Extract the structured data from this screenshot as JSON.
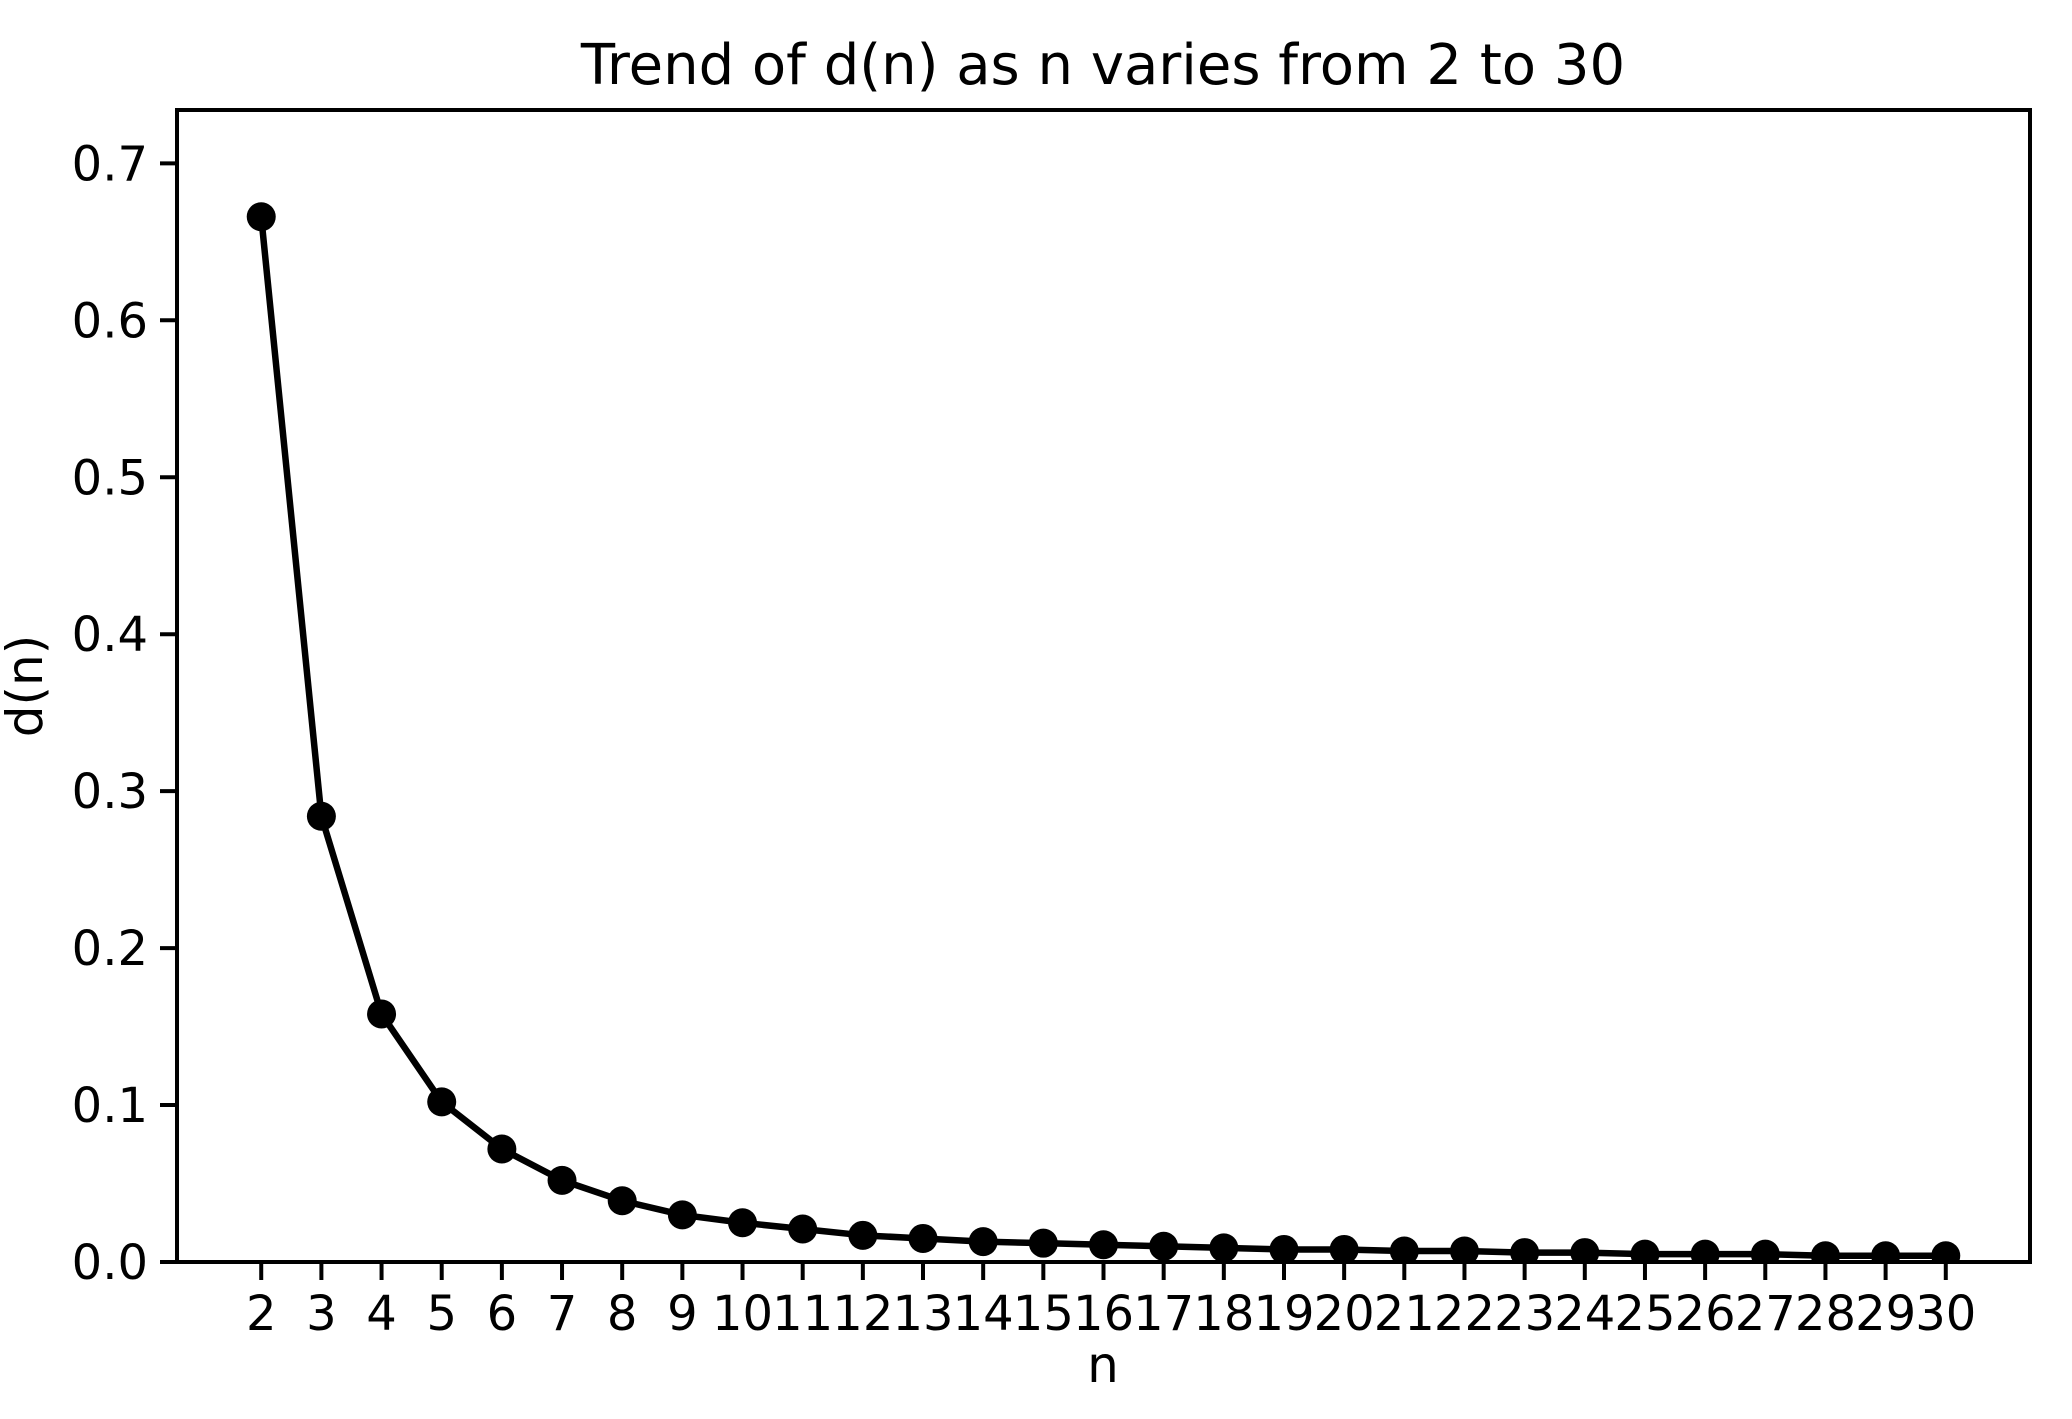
{
  "chart_data": {
    "type": "line",
    "title": "Trend of d(n) as n varies from 2 to 30",
    "xlabel": "n",
    "ylabel": "d(n)",
    "grid": false,
    "legend": "none",
    "background_color": "#ffffff",
    "line_color": "#000000",
    "marker": "circle",
    "marker_color": "#000000",
    "xlim": [
      0.6,
      31.4
    ],
    "ylim": [
      0.0,
      0.734
    ],
    "xticks": [
      2,
      3,
      4,
      5,
      6,
      7,
      8,
      9,
      10,
      11,
      12,
      13,
      14,
      15,
      16,
      17,
      18,
      19,
      20,
      21,
      22,
      23,
      24,
      25,
      26,
      27,
      28,
      29,
      30
    ],
    "ytick_values": [
      0.0,
      0.1,
      0.2,
      0.3,
      0.4,
      0.5,
      0.6,
      0.7
    ],
    "ytick_labels": [
      "0.0",
      "0.1",
      "0.2",
      "0.3",
      "0.4",
      "0.5",
      "0.6",
      "0.7"
    ],
    "series": [
      {
        "name": "d(n)",
        "x": [
          2,
          3,
          4,
          5,
          6,
          7,
          8,
          9,
          10,
          11,
          12,
          13,
          14,
          15,
          16,
          17,
          18,
          19,
          20,
          21,
          22,
          23,
          24,
          25,
          26,
          27,
          28,
          29,
          30
        ],
        "values": [
          0.666,
          0.284,
          0.158,
          0.102,
          0.072,
          0.052,
          0.039,
          0.03,
          0.025,
          0.021,
          0.017,
          0.015,
          0.013,
          0.012,
          0.011,
          0.01,
          0.009,
          0.008,
          0.008,
          0.007,
          0.007,
          0.006,
          0.006,
          0.005,
          0.005,
          0.005,
          0.004,
          0.004,
          0.004
        ]
      }
    ]
  }
}
